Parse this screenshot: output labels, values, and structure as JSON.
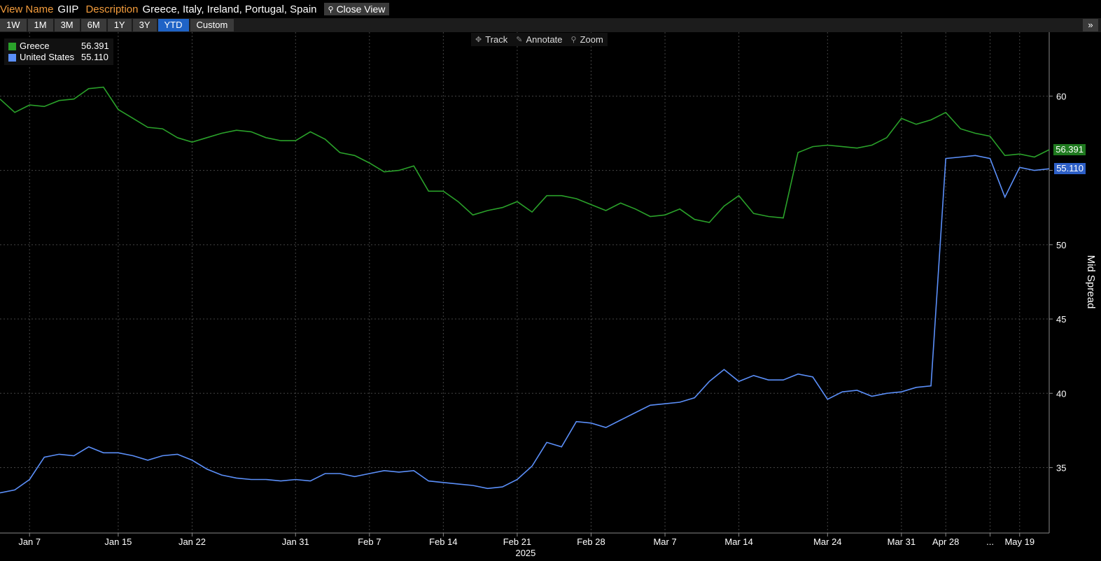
{
  "header": {
    "view_name_label": "View Name",
    "view_name_value": "GIIP",
    "description_label": "Description",
    "description_value": "Greece, Italy, Ireland, Portugal, Spain",
    "close_view_label": "Close View"
  },
  "range_buttons": [
    "1W",
    "1M",
    "3M",
    "6M",
    "1Y",
    "3Y",
    "YTD",
    "Custom"
  ],
  "active_range": "YTD",
  "tools": {
    "track": "Track",
    "annotate": "Annotate",
    "zoom": "Zoom"
  },
  "legend": {
    "greece": {
      "name": "Greece",
      "value": "56.391"
    },
    "us": {
      "name": "United States",
      "value": "55.110"
    }
  },
  "colors": {
    "greece": "#2aa12a",
    "us": "#5b8ff9",
    "grid": "#444444",
    "background": "#000000"
  },
  "chart_data": {
    "type": "line",
    "xlabel": "2025",
    "ylabel": "Mid Spread",
    "ylim": [
      30.6,
      64.3
    ],
    "y_ticks": [
      35,
      40,
      45,
      50,
      55,
      60
    ],
    "x_ticks": [
      {
        "label": "Jan 7",
        "index": 2
      },
      {
        "label": "Jan 15",
        "index": 8
      },
      {
        "label": "Jan 22",
        "index": 13
      },
      {
        "label": "Jan 31",
        "index": 20
      },
      {
        "label": "Feb 7",
        "index": 25
      },
      {
        "label": "Feb 14",
        "index": 30
      },
      {
        "label": "Feb 21",
        "index": 35
      },
      {
        "label": "Feb 28",
        "index": 40
      },
      {
        "label": "Mar 7",
        "index": 45
      },
      {
        "label": "Mar 14",
        "index": 50
      },
      {
        "label": "Mar 24",
        "index": 56
      },
      {
        "label": "Mar 31",
        "index": 61
      },
      {
        "label": "Apr 28",
        "index": 64
      },
      {
        "label": "...",
        "index": 67
      },
      {
        "label": "May 19",
        "index": 69
      }
    ],
    "x_count": 72,
    "series": [
      {
        "name": "Greece",
        "color": "#2aa12a",
        "last": "56.391",
        "values": [
          59.8,
          58.9,
          59.4,
          59.3,
          59.7,
          59.8,
          60.5,
          60.6,
          59.1,
          58.5,
          57.9,
          57.8,
          57.2,
          56.9,
          57.2,
          57.5,
          57.7,
          57.6,
          57.2,
          57.0,
          57.0,
          57.6,
          57.1,
          56.2,
          56.0,
          55.5,
          54.9,
          55.0,
          55.3,
          53.6,
          53.6,
          52.9,
          52.0,
          52.3,
          52.5,
          52.9,
          52.2,
          53.3,
          53.3,
          53.1,
          52.7,
          52.3,
          52.8,
          52.4,
          51.9,
          52.0,
          52.4,
          51.7,
          51.5,
          52.6,
          53.3,
          52.1,
          51.9,
          51.8,
          56.2,
          56.6,
          56.7,
          56.6,
          56.5,
          56.7,
          57.2,
          58.5,
          58.1,
          58.4,
          58.9,
          57.8,
          57.5,
          57.3,
          56.0,
          56.1,
          55.9,
          56.391
        ]
      },
      {
        "name": "United States",
        "color": "#5b8ff9",
        "last": "55.110",
        "values": [
          33.3,
          33.5,
          34.2,
          35.7,
          35.9,
          35.8,
          36.4,
          36.0,
          36.0,
          35.8,
          35.5,
          35.8,
          35.9,
          35.5,
          34.9,
          34.5,
          34.3,
          34.2,
          34.2,
          34.1,
          34.2,
          34.1,
          34.6,
          34.6,
          34.4,
          34.6,
          34.8,
          34.7,
          34.8,
          34.1,
          34.0,
          33.9,
          33.8,
          33.6,
          33.7,
          34.2,
          35.1,
          36.7,
          36.4,
          38.1,
          38.0,
          37.7,
          38.2,
          38.7,
          39.2,
          39.3,
          39.4,
          39.7,
          40.8,
          41.6,
          40.8,
          41.2,
          40.9,
          40.9,
          41.3,
          41.1,
          39.6,
          40.1,
          40.2,
          39.8,
          40.0,
          40.1,
          40.4,
          40.5,
          55.8,
          55.9,
          56.0,
          55.8,
          53.2,
          55.2,
          55.0,
          55.11
        ]
      }
    ]
  }
}
